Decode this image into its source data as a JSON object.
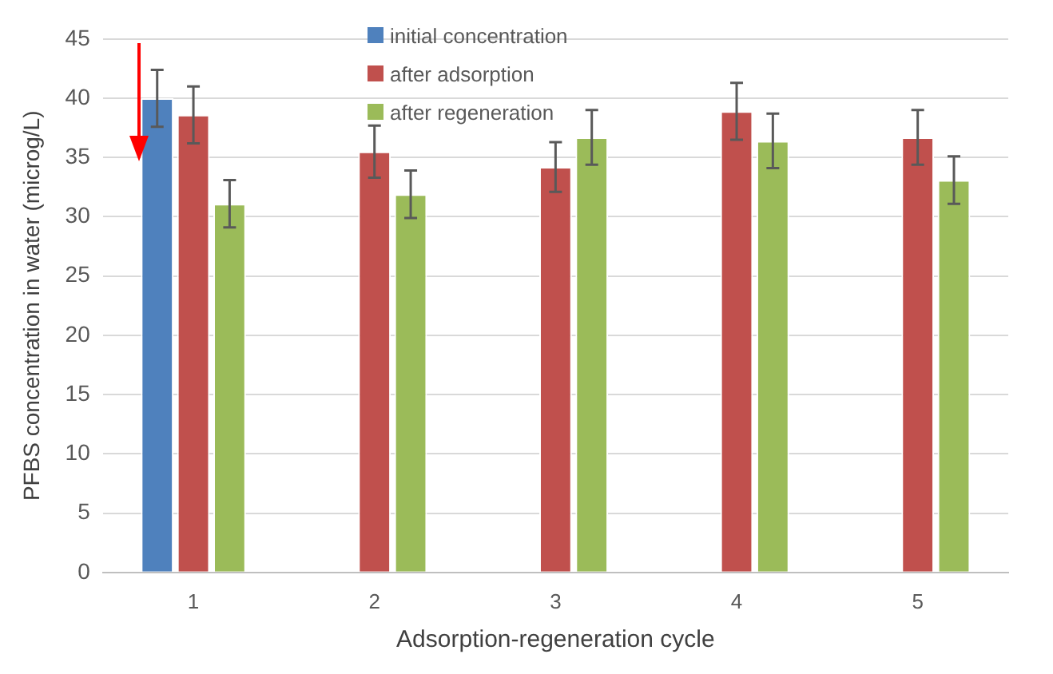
{
  "chart_data": {
    "type": "bar",
    "xlabel": "Adsorption-regeneration cycle",
    "ylabel": "PFBS concentration in water (microg/L)",
    "categories": [
      "1",
      "2",
      "3",
      "4",
      "5"
    ],
    "series": [
      {
        "name": "initial concentration",
        "color": "#4f81bd",
        "values": [
          40,
          null,
          null,
          null,
          null
        ],
        "errors": [
          2.4,
          null,
          null,
          null,
          null
        ]
      },
      {
        "name": "after adsorption",
        "color": "#c0504d",
        "values": [
          38.6,
          35.5,
          34.2,
          38.9,
          36.7
        ],
        "errors": [
          2.4,
          2.2,
          2.1,
          2.4,
          2.3
        ]
      },
      {
        "name": "after regeneration",
        "color": "#9bbb59",
        "values": [
          31.1,
          31.9,
          36.7,
          36.4,
          33.1
        ],
        "errors": [
          2.0,
          2.0,
          2.3,
          2.3,
          2.0
        ]
      }
    ],
    "ylim": [
      0,
      45
    ],
    "yticks": [
      0,
      5,
      10,
      15,
      20,
      25,
      30,
      35,
      40,
      45
    ],
    "grid": "y",
    "legend": "top"
  }
}
